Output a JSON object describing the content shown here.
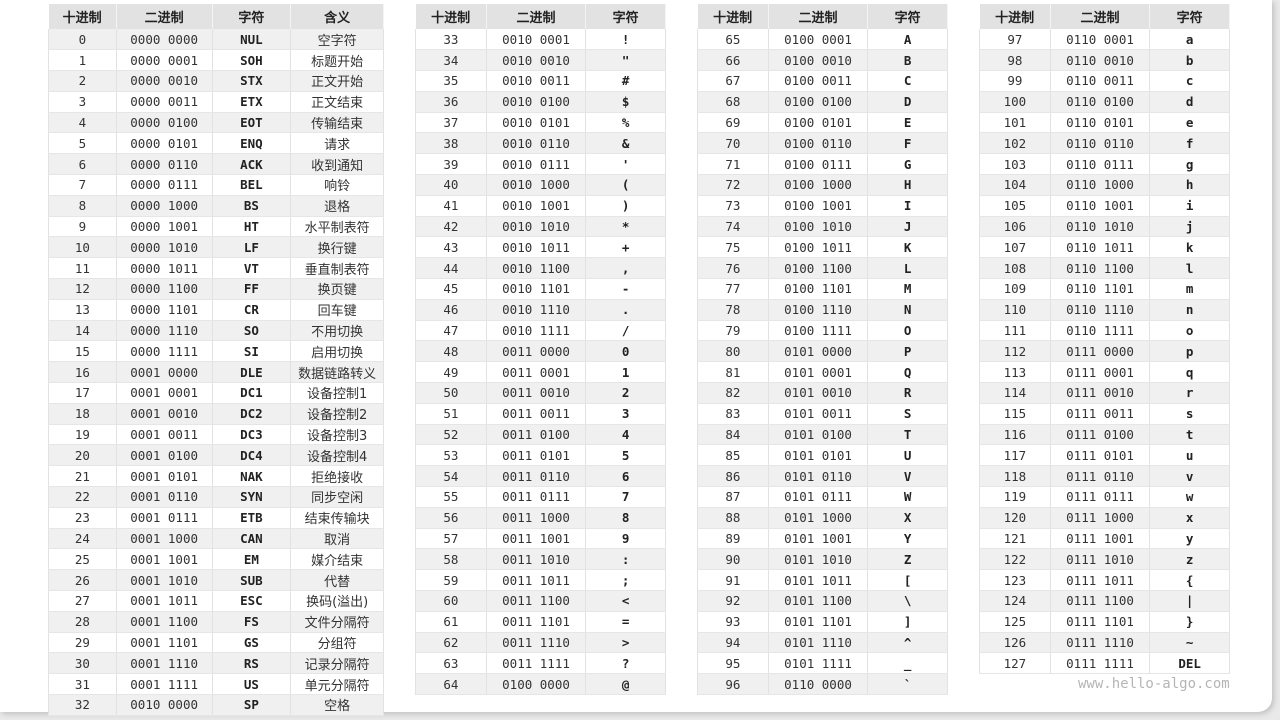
{
  "headers": {
    "dec": "十进制",
    "bin": "二进制",
    "char": "字符",
    "meaning": "含义"
  },
  "watermark": "www.hello-algo.com",
  "tables": [
    {
      "rows": [
        [
          "0",
          "0000 0000",
          "NUL",
          "空字符"
        ],
        [
          "1",
          "0000 0001",
          "SOH",
          "标题开始"
        ],
        [
          "2",
          "0000 0010",
          "STX",
          "正文开始"
        ],
        [
          "3",
          "0000 0011",
          "ETX",
          "正文结束"
        ],
        [
          "4",
          "0000 0100",
          "EOT",
          "传输结束"
        ],
        [
          "5",
          "0000 0101",
          "ENQ",
          "请求"
        ],
        [
          "6",
          "0000 0110",
          "ACK",
          "收到通知"
        ],
        [
          "7",
          "0000 0111",
          "BEL",
          "响铃"
        ],
        [
          "8",
          "0000 1000",
          "BS",
          "退格"
        ],
        [
          "9",
          "0000 1001",
          "HT",
          "水平制表符"
        ],
        [
          "10",
          "0000 1010",
          "LF",
          "换行键"
        ],
        [
          "11",
          "0000 1011",
          "VT",
          "垂直制表符"
        ],
        [
          "12",
          "0000 1100",
          "FF",
          "换页键"
        ],
        [
          "13",
          "0000 1101",
          "CR",
          "回车键"
        ],
        [
          "14",
          "0000 1110",
          "SO",
          "不用切换"
        ],
        [
          "15",
          "0000 1111",
          "SI",
          "启用切换"
        ],
        [
          "16",
          "0001 0000",
          "DLE",
          "数据链路转义"
        ],
        [
          "17",
          "0001 0001",
          "DC1",
          "设备控制1"
        ],
        [
          "18",
          "0001 0010",
          "DC2",
          "设备控制2"
        ],
        [
          "19",
          "0001 0011",
          "DC3",
          "设备控制3"
        ],
        [
          "20",
          "0001 0100",
          "DC4",
          "设备控制4"
        ],
        [
          "21",
          "0001 0101",
          "NAK",
          "拒绝接收"
        ],
        [
          "22",
          "0001 0110",
          "SYN",
          "同步空闲"
        ],
        [
          "23",
          "0001 0111",
          "ETB",
          "结束传输块"
        ],
        [
          "24",
          "0001 1000",
          "CAN",
          "取消"
        ],
        [
          "25",
          "0001 1001",
          "EM",
          "媒介结束"
        ],
        [
          "26",
          "0001 1010",
          "SUB",
          "代替"
        ],
        [
          "27",
          "0001 1011",
          "ESC",
          "换码(溢出)"
        ],
        [
          "28",
          "0001 1100",
          "FS",
          "文件分隔符"
        ],
        [
          "29",
          "0001 1101",
          "GS",
          "分组符"
        ],
        [
          "30",
          "0001 1110",
          "RS",
          "记录分隔符"
        ],
        [
          "31",
          "0001 1111",
          "US",
          "单元分隔符"
        ],
        [
          "32",
          "0010 0000",
          "SP",
          "空格"
        ]
      ]
    },
    {
      "rows": [
        [
          "33",
          "0010 0001",
          "!"
        ],
        [
          "34",
          "0010 0010",
          "\""
        ],
        [
          "35",
          "0010 0011",
          "#"
        ],
        [
          "36",
          "0010 0100",
          "$"
        ],
        [
          "37",
          "0010 0101",
          "%"
        ],
        [
          "38",
          "0010 0110",
          "&"
        ],
        [
          "39",
          "0010 0111",
          "'"
        ],
        [
          "40",
          "0010 1000",
          "("
        ],
        [
          "41",
          "0010 1001",
          ")"
        ],
        [
          "42",
          "0010 1010",
          "*"
        ],
        [
          "43",
          "0010 1011",
          "+"
        ],
        [
          "44",
          "0010 1100",
          ","
        ],
        [
          "45",
          "0010 1101",
          "-"
        ],
        [
          "46",
          "0010 1110",
          "."
        ],
        [
          "47",
          "0010 1111",
          "/"
        ],
        [
          "48",
          "0011 0000",
          "0"
        ],
        [
          "49",
          "0011 0001",
          "1"
        ],
        [
          "50",
          "0011 0010",
          "2"
        ],
        [
          "51",
          "0011 0011",
          "3"
        ],
        [
          "52",
          "0011 0100",
          "4"
        ],
        [
          "53",
          "0011 0101",
          "5"
        ],
        [
          "54",
          "0011 0110",
          "6"
        ],
        [
          "55",
          "0011 0111",
          "7"
        ],
        [
          "56",
          "0011 1000",
          "8"
        ],
        [
          "57",
          "0011 1001",
          "9"
        ],
        [
          "58",
          "0011 1010",
          ":"
        ],
        [
          "59",
          "0011 1011",
          ";"
        ],
        [
          "60",
          "0011 1100",
          "<"
        ],
        [
          "61",
          "0011 1101",
          "="
        ],
        [
          "62",
          "0011 1110",
          ">"
        ],
        [
          "63",
          "0011 1111",
          "?"
        ],
        [
          "64",
          "0100 0000",
          "@"
        ]
      ]
    },
    {
      "rows": [
        [
          "65",
          "0100 0001",
          "A"
        ],
        [
          "66",
          "0100 0010",
          "B"
        ],
        [
          "67",
          "0100 0011",
          "C"
        ],
        [
          "68",
          "0100 0100",
          "D"
        ],
        [
          "69",
          "0100 0101",
          "E"
        ],
        [
          "70",
          "0100 0110",
          "F"
        ],
        [
          "71",
          "0100 0111",
          "G"
        ],
        [
          "72",
          "0100 1000",
          "H"
        ],
        [
          "73",
          "0100 1001",
          "I"
        ],
        [
          "74",
          "0100 1010",
          "J"
        ],
        [
          "75",
          "0100 1011",
          "K"
        ],
        [
          "76",
          "0100 1100",
          "L"
        ],
        [
          "77",
          "0100 1101",
          "M"
        ],
        [
          "78",
          "0100 1110",
          "N"
        ],
        [
          "79",
          "0100 1111",
          "O"
        ],
        [
          "80",
          "0101 0000",
          "P"
        ],
        [
          "81",
          "0101 0001",
          "Q"
        ],
        [
          "82",
          "0101 0010",
          "R"
        ],
        [
          "83",
          "0101 0011",
          "S"
        ],
        [
          "84",
          "0101 0100",
          "T"
        ],
        [
          "85",
          "0101 0101",
          "U"
        ],
        [
          "86",
          "0101 0110",
          "V"
        ],
        [
          "87",
          "0101 0111",
          "W"
        ],
        [
          "88",
          "0101 1000",
          "X"
        ],
        [
          "89",
          "0101 1001",
          "Y"
        ],
        [
          "90",
          "0101 1010",
          "Z"
        ],
        [
          "91",
          "0101 1011",
          "["
        ],
        [
          "92",
          "0101 1100",
          "\\"
        ],
        [
          "93",
          "0101 1101",
          "]"
        ],
        [
          "94",
          "0101 1110",
          "^"
        ],
        [
          "95",
          "0101 1111",
          "_"
        ],
        [
          "96",
          "0110 0000",
          "`"
        ]
      ]
    },
    {
      "rows": [
        [
          "97",
          "0110 0001",
          "a"
        ],
        [
          "98",
          "0110 0010",
          "b"
        ],
        [
          "99",
          "0110 0011",
          "c"
        ],
        [
          "100",
          "0110 0100",
          "d"
        ],
        [
          "101",
          "0110 0101",
          "e"
        ],
        [
          "102",
          "0110 0110",
          "f"
        ],
        [
          "103",
          "0110 0111",
          "g"
        ],
        [
          "104",
          "0110 1000",
          "h"
        ],
        [
          "105",
          "0110 1001",
          "i"
        ],
        [
          "106",
          "0110 1010",
          "j"
        ],
        [
          "107",
          "0110 1011",
          "k"
        ],
        [
          "108",
          "0110 1100",
          "l"
        ],
        [
          "109",
          "0110 1101",
          "m"
        ],
        [
          "110",
          "0110 1110",
          "n"
        ],
        [
          "111",
          "0110 1111",
          "o"
        ],
        [
          "112",
          "0111 0000",
          "p"
        ],
        [
          "113",
          "0111 0001",
          "q"
        ],
        [
          "114",
          "0111 0010",
          "r"
        ],
        [
          "115",
          "0111 0011",
          "s"
        ],
        [
          "116",
          "0111 0100",
          "t"
        ],
        [
          "117",
          "0111 0101",
          "u"
        ],
        [
          "118",
          "0111 0110",
          "v"
        ],
        [
          "119",
          "0111 0111",
          "w"
        ],
        [
          "120",
          "0111 1000",
          "x"
        ],
        [
          "121",
          "0111 1001",
          "y"
        ],
        [
          "122",
          "0111 1010",
          "z"
        ],
        [
          "123",
          "0111 1011",
          "{"
        ],
        [
          "124",
          "0111 1100",
          "|"
        ],
        [
          "125",
          "0111 1101",
          "}"
        ],
        [
          "126",
          "0111 1110",
          "~"
        ],
        [
          "127",
          "0111 1111",
          "DEL"
        ]
      ]
    }
  ]
}
